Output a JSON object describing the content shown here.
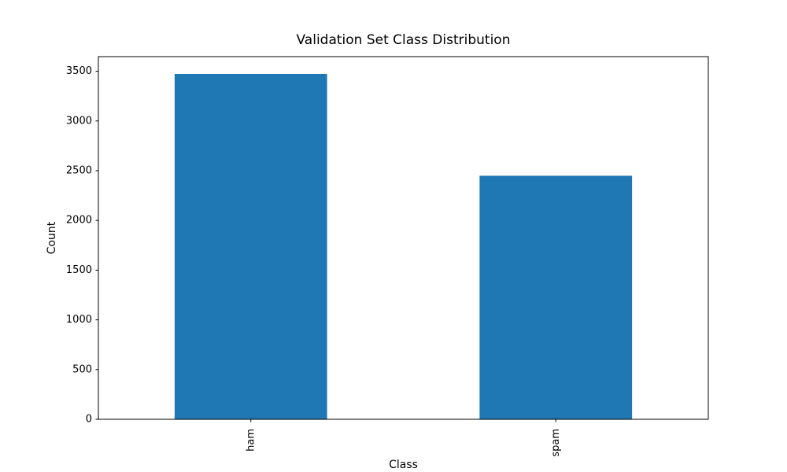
{
  "page": {
    "background": "#ffffff"
  },
  "chart_data": {
    "type": "bar",
    "title": "Validation Set Class Distribution",
    "xlabel": "Class",
    "ylabel": "Count",
    "categories": [
      "ham",
      "spam"
    ],
    "values": [
      3473,
      2449
    ],
    "ylim": [
      0,
      3647
    ],
    "yticks": [
      0,
      500,
      1000,
      1500,
      2000,
      2500,
      3000,
      3500
    ],
    "bar_color": "#1f77b4",
    "spine_color": "#000000",
    "text_color": "#000000",
    "xtick_rotation": 90,
    "bar_rel_width": 0.5,
    "grid": false,
    "legend_position": "none"
  }
}
